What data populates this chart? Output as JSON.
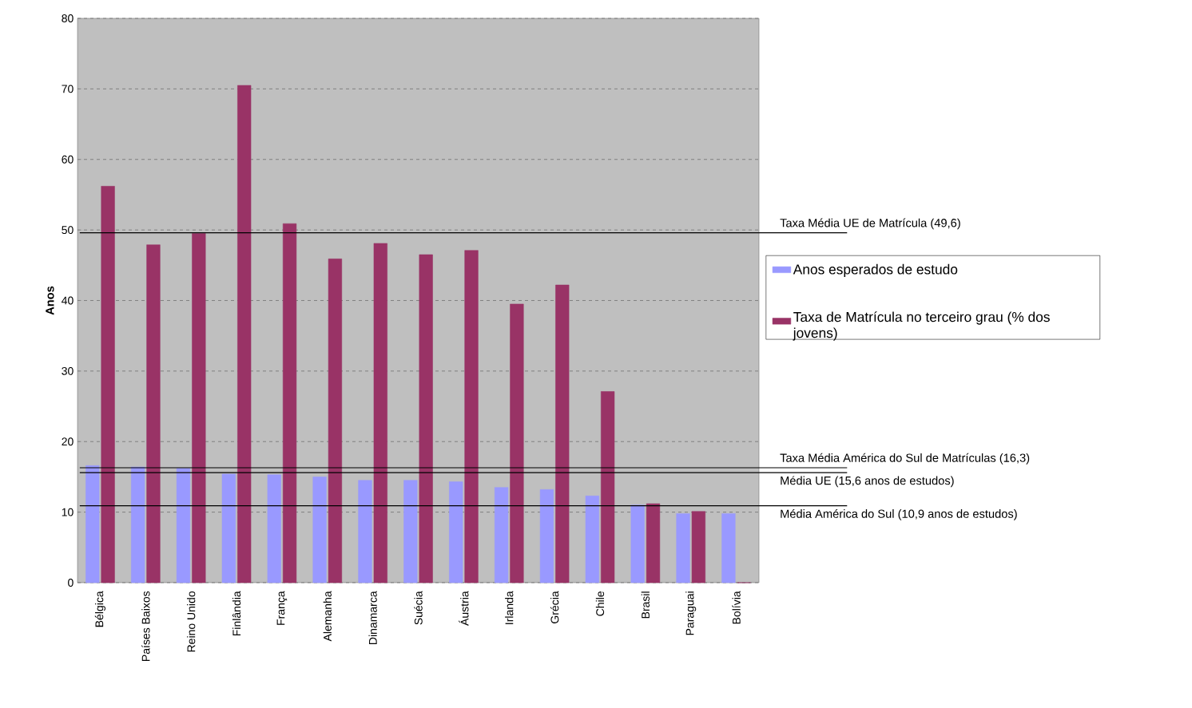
{
  "chart_data": {
    "type": "bar",
    "ylabel": "Anos",
    "categories": [
      "Bélgica",
      "Países Baixos",
      "Reino Unido",
      "Finlândia",
      "França",
      "Alemanha",
      "Dinamarca",
      "Suécia",
      "Áustria",
      "Irlanda",
      "Grécia",
      "Chile",
      "Brasil",
      "Paraguai",
      "Bolívia"
    ],
    "series": [
      {
        "name": "Anos esperados de estudo",
        "color": "#9999ff",
        "values": [
          16.6,
          16.4,
          16.2,
          15.4,
          15.3,
          15.0,
          14.5,
          14.5,
          14.3,
          13.5,
          13.2,
          12.3,
          11.0,
          9.8,
          9.8
        ]
      },
      {
        "name": "Taxa de Matrícula no terceiro grau (% dos jovens)",
        "color": "#993366",
        "values": [
          56.2,
          47.9,
          49.5,
          70.5,
          50.9,
          45.9,
          48.1,
          46.5,
          47.1,
          39.5,
          42.2,
          27.1,
          11.2,
          10.1,
          0
        ]
      }
    ],
    "ylim": [
      0,
      80
    ],
    "yticks": [
      0,
      10,
      20,
      30,
      40,
      50,
      60,
      70,
      80
    ],
    "grid": "y",
    "legend": "right",
    "ref_lines": [
      {
        "axis": "y",
        "value": 49.6,
        "label": "Taxa Média UE de Matrícula (49,6)"
      },
      {
        "axis": "y",
        "value": 16.3,
        "label": "Taxa Média América do Sul de Matrículas (16,3)"
      },
      {
        "axis": "y",
        "value": 15.6,
        "label": "Média UE (15,6 anos de estudos)"
      },
      {
        "axis": "y",
        "value": 10.9,
        "label": "Média América do Sul (10,9 anos de estudos)"
      }
    ]
  }
}
